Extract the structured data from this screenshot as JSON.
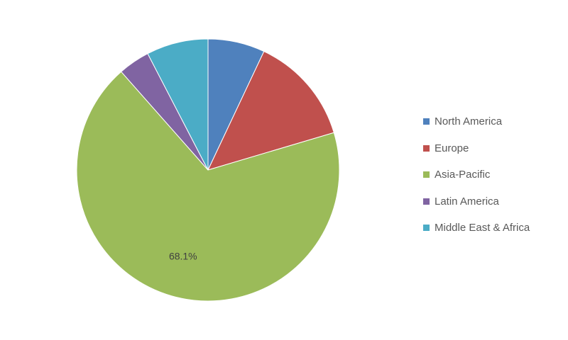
{
  "chart_data": {
    "type": "pie",
    "title": "",
    "start_angle_deg": 0,
    "direction": "clockwise",
    "slices": [
      {
        "label": "North America",
        "value": 7.0,
        "color": "#4F81BD",
        "data_label": ""
      },
      {
        "label": "Europe",
        "value": 13.4,
        "color": "#C0504D",
        "data_label": ""
      },
      {
        "label": "Asia-Pacific",
        "value": 68.1,
        "color": "#9BBB59",
        "data_label": "68.1%"
      },
      {
        "label": "Latin America",
        "value": 3.9,
        "color": "#8064A2",
        "data_label": ""
      },
      {
        "label": "Middle East & Africa",
        "value": 7.6,
        "color": "#4BACC6",
        "data_label": ""
      }
    ],
    "legend_position": "right"
  }
}
